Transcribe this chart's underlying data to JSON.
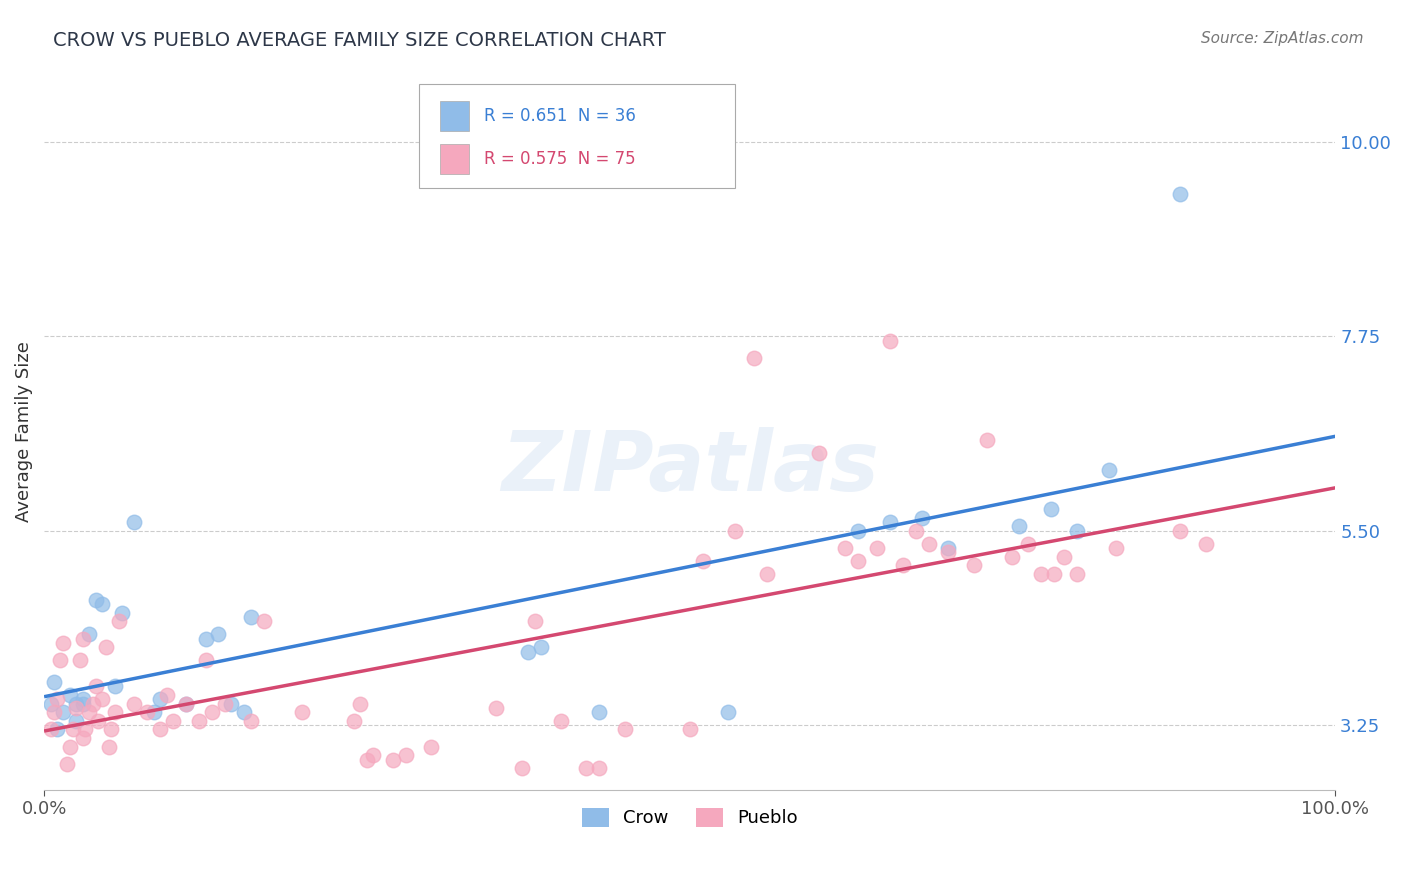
{
  "title": "CROW VS PUEBLO AVERAGE FAMILY SIZE CORRELATION CHART",
  "source": "Source: ZipAtlas.com",
  "ylabel": "Average Family Size",
  "xlim": [
    0,
    1.0
  ],
  "ylim": [
    2.5,
    10.8
  ],
  "yticks": [
    3.25,
    5.5,
    7.75,
    10.0
  ],
  "ytick_labels": [
    "3.25",
    "5.50",
    "7.75",
    "10.00"
  ],
  "xtick_labels": [
    "0.0%",
    "100.0%"
  ],
  "background_color": "#ffffff",
  "grid_color": "#cccccc",
  "watermark": "ZIPatlas",
  "crow_color": "#90bce8",
  "pueblo_color": "#f5a8be",
  "crow_line_color": "#3a7fd4",
  "pueblo_line_color": "#d44870",
  "crow_R": "0.651",
  "crow_N": "36",
  "pueblo_R": "0.575",
  "pueblo_N": "75",
  "crow_scatter": [
    [
      0.005,
      3.5
    ],
    [
      0.008,
      3.75
    ],
    [
      0.01,
      3.2
    ],
    [
      0.015,
      3.4
    ],
    [
      0.02,
      3.6
    ],
    [
      0.025,
      3.3
    ],
    [
      0.025,
      3.5
    ],
    [
      0.03,
      3.55
    ],
    [
      0.03,
      3.5
    ],
    [
      0.035,
      4.3
    ],
    [
      0.04,
      4.7
    ],
    [
      0.045,
      4.65
    ],
    [
      0.055,
      3.7
    ],
    [
      0.06,
      4.55
    ],
    [
      0.085,
      3.4
    ],
    [
      0.09,
      3.55
    ],
    [
      0.11,
      3.5
    ],
    [
      0.125,
      4.25
    ],
    [
      0.135,
      4.3
    ],
    [
      0.145,
      3.5
    ],
    [
      0.155,
      3.4
    ],
    [
      0.16,
      4.5
    ],
    [
      0.07,
      5.6
    ],
    [
      0.375,
      4.1
    ],
    [
      0.385,
      4.15
    ],
    [
      0.43,
      3.4
    ],
    [
      0.53,
      3.4
    ],
    [
      0.63,
      5.5
    ],
    [
      0.655,
      5.6
    ],
    [
      0.68,
      5.65
    ],
    [
      0.7,
      5.3
    ],
    [
      0.755,
      5.55
    ],
    [
      0.78,
      5.75
    ],
    [
      0.8,
      5.5
    ],
    [
      0.825,
      6.2
    ],
    [
      0.88,
      9.4
    ]
  ],
  "pueblo_scatter": [
    [
      0.005,
      3.2
    ],
    [
      0.008,
      3.4
    ],
    [
      0.01,
      3.55
    ],
    [
      0.012,
      4.0
    ],
    [
      0.015,
      4.2
    ],
    [
      0.018,
      2.8
    ],
    [
      0.02,
      3.0
    ],
    [
      0.022,
      3.2
    ],
    [
      0.025,
      3.45
    ],
    [
      0.028,
      4.0
    ],
    [
      0.03,
      4.25
    ],
    [
      0.03,
      3.1
    ],
    [
      0.032,
      3.2
    ],
    [
      0.035,
      3.4
    ],
    [
      0.038,
      3.5
    ],
    [
      0.04,
      3.7
    ],
    [
      0.042,
      3.3
    ],
    [
      0.045,
      3.55
    ],
    [
      0.048,
      4.15
    ],
    [
      0.05,
      3.0
    ],
    [
      0.052,
      3.2
    ],
    [
      0.055,
      3.4
    ],
    [
      0.058,
      4.45
    ],
    [
      0.07,
      3.5
    ],
    [
      0.08,
      3.4
    ],
    [
      0.09,
      3.2
    ],
    [
      0.095,
      3.6
    ],
    [
      0.1,
      3.3
    ],
    [
      0.11,
      3.5
    ],
    [
      0.12,
      3.3
    ],
    [
      0.125,
      4.0
    ],
    [
      0.13,
      3.4
    ],
    [
      0.14,
      3.5
    ],
    [
      0.16,
      3.3
    ],
    [
      0.17,
      4.45
    ],
    [
      0.2,
      3.4
    ],
    [
      0.24,
      3.3
    ],
    [
      0.245,
      3.5
    ],
    [
      0.25,
      2.85
    ],
    [
      0.255,
      2.9
    ],
    [
      0.27,
      2.85
    ],
    [
      0.28,
      2.9
    ],
    [
      0.3,
      3.0
    ],
    [
      0.35,
      3.45
    ],
    [
      0.37,
      2.75
    ],
    [
      0.38,
      4.45
    ],
    [
      0.4,
      3.3
    ],
    [
      0.42,
      2.75
    ],
    [
      0.43,
      2.75
    ],
    [
      0.45,
      3.2
    ],
    [
      0.5,
      3.2
    ],
    [
      0.51,
      5.15
    ],
    [
      0.535,
      5.5
    ],
    [
      0.55,
      7.5
    ],
    [
      0.56,
      5.0
    ],
    [
      0.6,
      6.4
    ],
    [
      0.62,
      5.3
    ],
    [
      0.63,
      5.15
    ],
    [
      0.645,
      5.3
    ],
    [
      0.655,
      7.7
    ],
    [
      0.665,
      5.1
    ],
    [
      0.675,
      5.5
    ],
    [
      0.685,
      5.35
    ],
    [
      0.7,
      5.25
    ],
    [
      0.72,
      5.1
    ],
    [
      0.73,
      6.55
    ],
    [
      0.75,
      5.2
    ],
    [
      0.762,
      5.35
    ],
    [
      0.772,
      5.0
    ],
    [
      0.782,
      5.0
    ],
    [
      0.79,
      5.2
    ],
    [
      0.8,
      5.0
    ],
    [
      0.83,
      5.3
    ],
    [
      0.88,
      5.5
    ],
    [
      0.9,
      5.35
    ]
  ]
}
